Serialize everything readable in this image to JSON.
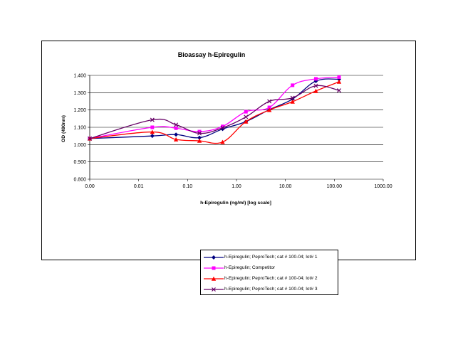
{
  "chart_data": {
    "type": "line",
    "title": "Bioassay h-Epiregulin",
    "xlabel": "h-Epiregulin (ng/ml) [log scale]",
    "ylabel": "OD (490nm)",
    "x_scale": "log",
    "x_ticks": [
      "0.00",
      "0.01",
      "0.10",
      "1.00",
      "10.00",
      "100.00",
      "1000.00"
    ],
    "y_ticks": [
      "0.800",
      "0.900",
      "1.000",
      "1.100",
      "1.200",
      "1.300",
      "1.400"
    ],
    "xlim": [
      0.001,
      1000
    ],
    "ylim": [
      0.8,
      1.4
    ],
    "grid": "horizontal",
    "legend_position": "bottom",
    "series": [
      {
        "name": "h-Epiregulin; PeproTech; cat # 100-04; lot# 1",
        "color": "#000080",
        "marker": "diamond",
        "points": [
          [
            0.001,
            1.035
          ],
          [
            0.019,
            1.05
          ],
          [
            0.058,
            1.058
          ],
          [
            0.175,
            1.04
          ],
          [
            0.52,
            1.09
          ],
          [
            1.56,
            1.133
          ],
          [
            4.7,
            1.202
          ],
          [
            14,
            1.263
          ],
          [
            42,
            1.367
          ],
          [
            125,
            1.378
          ]
        ]
      },
      {
        "name": "h-Epiregulin; Competitor",
        "color": "#ff00ff",
        "marker": "square",
        "points": [
          [
            0.001,
            1.035
          ],
          [
            0.019,
            1.1
          ],
          [
            0.058,
            1.095
          ],
          [
            0.175,
            1.075
          ],
          [
            0.52,
            1.105
          ],
          [
            1.56,
            1.19
          ],
          [
            4.7,
            1.215
          ],
          [
            14,
            1.343
          ],
          [
            42,
            1.38
          ],
          [
            125,
            1.39
          ]
        ]
      },
      {
        "name": "h-Epiregulin; PeproTech; cat # 100-04; lot# 2",
        "color": "#ff0000",
        "marker": "triangle",
        "points": [
          [
            0.001,
            1.035
          ],
          [
            0.019,
            1.073
          ],
          [
            0.058,
            1.03
          ],
          [
            0.175,
            1.022
          ],
          [
            0.52,
            1.015
          ],
          [
            1.56,
            1.133
          ],
          [
            4.7,
            1.2
          ],
          [
            14,
            1.248
          ],
          [
            42,
            1.31
          ],
          [
            125,
            1.363
          ]
        ]
      },
      {
        "name": "h-Epiregulin; PeproTech; cat # 100-04; lot# 3",
        "color": "#660066",
        "marker": "x",
        "points": [
          [
            0.001,
            1.035
          ],
          [
            0.019,
            1.143
          ],
          [
            0.058,
            1.115
          ],
          [
            0.175,
            1.065
          ],
          [
            0.52,
            1.097
          ],
          [
            1.56,
            1.16
          ],
          [
            4.7,
            1.25
          ],
          [
            14,
            1.27
          ],
          [
            42,
            1.34
          ],
          [
            125,
            1.313
          ]
        ]
      }
    ]
  }
}
